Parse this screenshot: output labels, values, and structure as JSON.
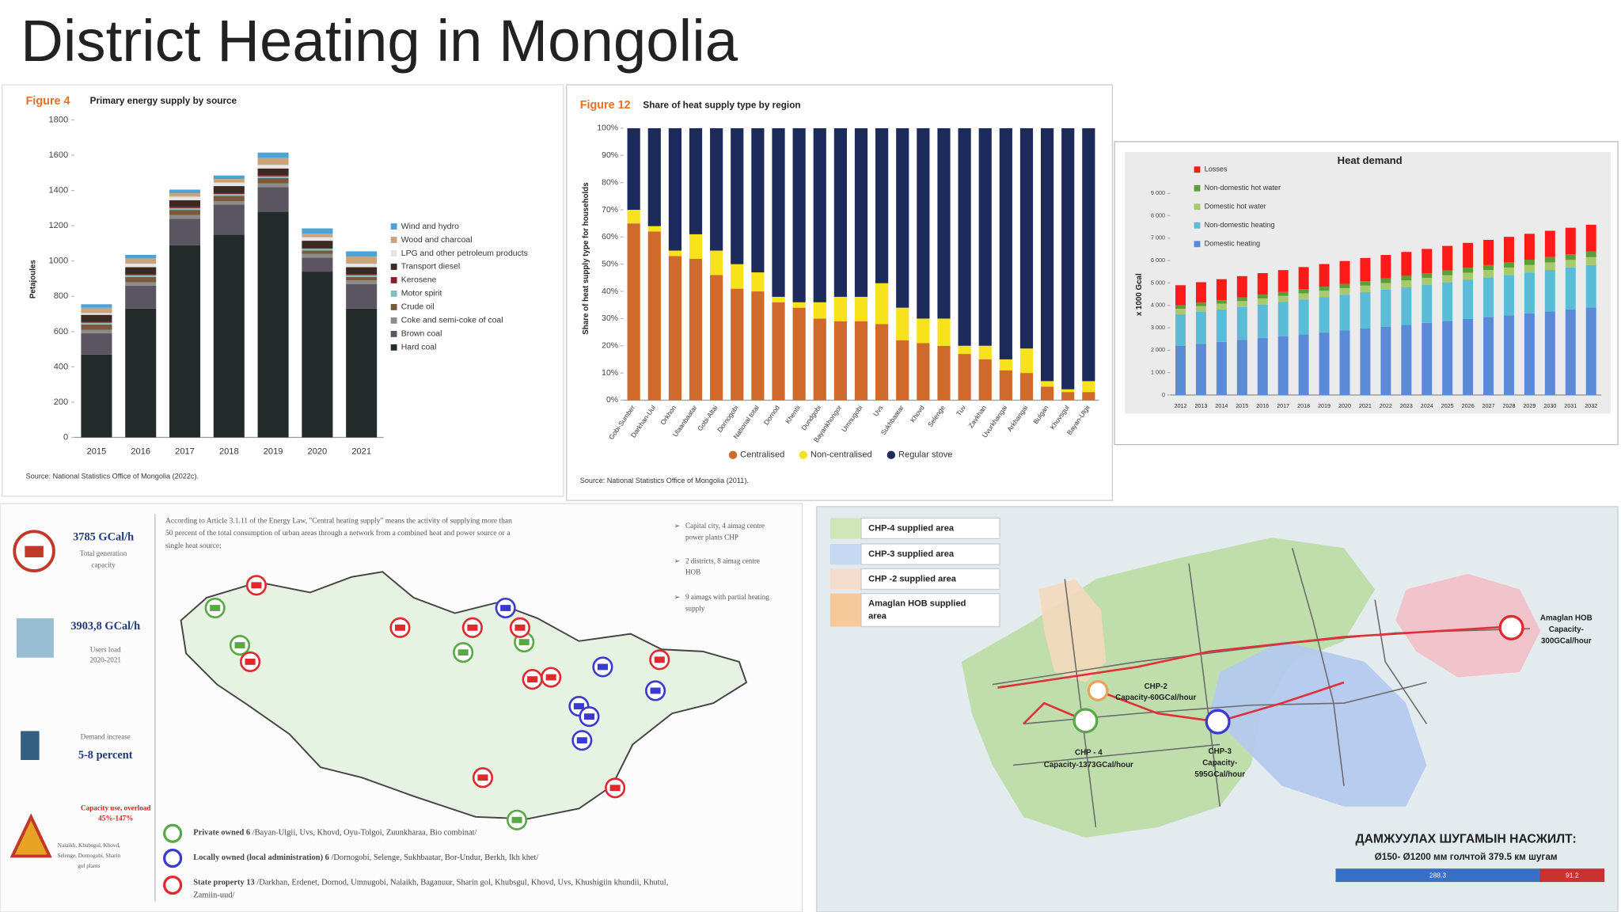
{
  "title": "District Heating in Mongolia",
  "chart_data": [
    {
      "type": "stacked_bar",
      "figure": "Figure 4",
      "title": "Primary energy supply by source",
      "y_label": "Petajoules",
      "source": "Source: National Statistics Office of Mongolia (2022c).",
      "categories": [
        "2015",
        "2016",
        "2017",
        "2018",
        "2019",
        "2020",
        "2021"
      ],
      "ylim": [
        0,
        1800
      ],
      "yticks": [
        0,
        200,
        400,
        600,
        800,
        1000,
        1200,
        1400,
        1600,
        1800
      ],
      "series": [
        {
          "name": "Wind and hydro",
          "color": "#4ba3d6",
          "values": [
            20,
            20,
            20,
            20,
            30,
            30,
            30
          ]
        },
        {
          "name": "Wood and charcoal",
          "color": "#c9a47a",
          "values": [
            30,
            30,
            20,
            20,
            40,
            20,
            40
          ]
        },
        {
          "name": "LPG and other petroleum products",
          "color": "#e6e6e6",
          "values": [
            10,
            20,
            20,
            20,
            20,
            20,
            20
          ]
        },
        {
          "name": "Transport diesel",
          "color": "#3b2a22",
          "values": [
            40,
            40,
            40,
            40,
            40,
            40,
            40
          ]
        },
        {
          "name": "Kerosene",
          "color": "#8b1c2a",
          "values": [
            5,
            5,
            5,
            5,
            5,
            5,
            5
          ]
        },
        {
          "name": "Motor spirit",
          "color": "#7fbfc0",
          "values": [
            10,
            10,
            10,
            10,
            10,
            10,
            10
          ]
        },
        {
          "name": "Crude oil",
          "color": "#7a5a3a",
          "values": [
            30,
            30,
            30,
            30,
            30,
            20,
            20
          ]
        },
        {
          "name": "Coke and semi-coke of coal",
          "color": "#8c8c8c",
          "values": [
            20,
            20,
            20,
            20,
            20,
            20,
            20
          ]
        },
        {
          "name": "Brown coal",
          "color": "#5a5560",
          "values": [
            120,
            130,
            150,
            170,
            140,
            80,
            140
          ]
        },
        {
          "name": "Hard coal",
          "color": "#222a2a",
          "values": [
            470,
            730,
            1090,
            1150,
            1280,
            940,
            730
          ]
        }
      ]
    },
    {
      "type": "stacked_bar",
      "figure": "Figure 12",
      "title": "Share of heat supply type by region",
      "y_label": "Share of heat supply type for households",
      "source": "Source: National Statistics Office of Mongolia (2011).",
      "categories": [
        "Gobi-Sumber",
        "Darkhan-Uul",
        "Orkhon",
        "Ulaanbaatar",
        "Gobi-Altai",
        "Dornogobi",
        "National total",
        "Dornod",
        "Khentii",
        "Dundgobi",
        "Bayankhongor",
        "Umnugobi",
        "Uvs",
        "Sukhbaatar",
        "Khovd",
        "Selenge",
        "Tuv",
        "Zavkhan",
        "Uvurkhangai",
        "Arkhangai",
        "Bulgan",
        "Khuvsgul",
        "Bayan-Ulgii"
      ],
      "ylim": [
        0,
        100
      ],
      "yticks": [
        {
          "value": 0,
          "label": "0%"
        },
        {
          "value": 10,
          "label": "10%"
        },
        {
          "value": 20,
          "label": "20%"
        },
        {
          "value": 30,
          "label": "30%"
        },
        {
          "value": 40,
          "label": "40%"
        },
        {
          "value": 50,
          "label": "50%"
        },
        {
          "value": 60,
          "label": "60%"
        },
        {
          "value": 70,
          "label": "70%"
        },
        {
          "value": 80,
          "label": "80%"
        },
        {
          "value": 90,
          "label": "90%"
        },
        {
          "value": 100,
          "label": "100%"
        }
      ],
      "series": [
        {
          "name": "Centralised",
          "color": "#cf6a2c",
          "values": [
            65,
            62,
            53,
            52,
            46,
            41,
            40,
            36,
            34,
            30,
            29,
            29,
            28,
            22,
            21,
            20,
            17,
            15,
            11,
            10,
            5,
            3,
            3
          ]
        },
        {
          "name": "Non-centralised",
          "color": "#f7e21c",
          "values": [
            5,
            2,
            2,
            9,
            9,
            9,
            7,
            2,
            2,
            6,
            9,
            9,
            15,
            12,
            9,
            10,
            3,
            5,
            4,
            9,
            2,
            1,
            4
          ]
        },
        {
          "name": "Regular stove",
          "color": "#1d2a5c",
          "values": [
            30,
            36,
            45,
            39,
            45,
            50,
            53,
            62,
            64,
            64,
            62,
            62,
            57,
            66,
            70,
            70,
            80,
            80,
            85,
            81,
            93,
            96,
            93
          ]
        }
      ]
    },
    {
      "type": "stacked_bar",
      "title": "Heat demand",
      "y_label": "x 1000 Gcal",
      "categories": [
        "2012",
        "2013",
        "2014",
        "2015",
        "2016",
        "2017",
        "2018",
        "2019",
        "2020",
        "2021",
        "2022",
        "2023",
        "2024",
        "2025",
        "2026",
        "2027",
        "2028",
        "2029",
        "2030",
        "2031",
        "2032"
      ],
      "ylim": [
        0,
        9000
      ],
      "yticks": [
        0,
        {
          "value": 1000,
          "label": "1 000"
        },
        {
          "value": 2000,
          "label": "2 000"
        },
        {
          "value": 3000,
          "label": "3 000"
        },
        {
          "value": 4000,
          "label": "4 000"
        },
        {
          "value": 5000,
          "label": "5 000"
        },
        {
          "value": 6000,
          "label": "6 000"
        },
        {
          "value": 7000,
          "label": "7 000"
        },
        {
          "value": 8000,
          "label": "8 000"
        },
        {
          "value": 9000,
          "label": "9 000"
        }
      ],
      "series": [
        {
          "name": "Losses",
          "color": "#ff1a1a",
          "values": [
            900,
            915,
            930,
            945,
            960,
            975,
            990,
            1005,
            1020,
            1035,
            1050,
            1065,
            1080,
            1095,
            1110,
            1125,
            1140,
            1155,
            1170,
            1185,
            1200
          ]
        },
        {
          "name": "Non-domestic hot water",
          "color": "#5a9e3a",
          "values": [
            150,
            155,
            160,
            165,
            170,
            175,
            180,
            185,
            190,
            195,
            200,
            205,
            210,
            215,
            220,
            225,
            230,
            235,
            240,
            245,
            250
          ]
        },
        {
          "name": "Domestic hot water",
          "color": "#a8c96c",
          "values": [
            250,
            255,
            260,
            265,
            270,
            275,
            280,
            285,
            290,
            295,
            300,
            305,
            310,
            315,
            320,
            325,
            330,
            335,
            340,
            345,
            350
          ]
        },
        {
          "name": "Non-domestic heating",
          "color": "#5bbcd8",
          "values": [
            1400,
            1425,
            1450,
            1475,
            1500,
            1525,
            1550,
            1575,
            1600,
            1625,
            1650,
            1675,
            1700,
            1725,
            1750,
            1775,
            1800,
            1825,
            1850,
            1875,
            1900
          ]
        },
        {
          "name": "Domestic heating",
          "color": "#5b8bd6",
          "values": [
            2200,
            2285,
            2370,
            2455,
            2540,
            2625,
            2710,
            2795,
            2880,
            2965,
            3050,
            3135,
            3220,
            3305,
            3390,
            3475,
            3560,
            3645,
            3730,
            3815,
            3900
          ]
        }
      ]
    }
  ],
  "infographic": {
    "capacity": {
      "value": "3785 GCal/h",
      "lines": [
        "Total generation",
        "capacity"
      ]
    },
    "load": {
      "value": "3903,8 GCal/h",
      "lines": [
        "Users load",
        "2020-2021"
      ]
    },
    "demand": {
      "label": "Demand increase",
      "value": "5-8 percent"
    },
    "overload": {
      "lines": [
        "Capacity use, overload",
        "45%-147%"
      ],
      "plants": [
        "Nalaikh, Khubsgul, Khovd,",
        "Selenge, Dornogobi, Sharin",
        "gol plants"
      ]
    },
    "definition": [
      "According to Article 3.1.11 of the Energy Law, \"Central heating supply\" means the activity of supplying more than",
      "50 percent of the total consumption of urban areas through a network from a combined heat and power source or a",
      "single heat source;"
    ],
    "bullets": [
      [
        "Capital city, 4 aimag centre",
        "power plants CHP"
      ],
      [
        "2 districts, 8 aimag centre",
        "HOB"
      ],
      [
        "9 aimags with partial heating",
        "supply"
      ]
    ],
    "ownership": [
      {
        "label": "Private owned 6",
        "list": "/Bayan-Ulgii, Uvs, Khovd, Oyu-Tolgoi, Zuunkharaa, Bio combinat/"
      },
      {
        "label": "Locally owned (local administration) 6",
        "list": "/Dornogobi, Selenge, Sukhbaatar, Bor-Undur, Berkh, Ikh khet/"
      },
      {
        "label": "State property 13",
        "list_lines": [
          "/Darkhan, Erdenet, Dornod, Umnugobi, Nalaikh, Baganuur, Sharin gol, Khubsgul, Khovd, Uvs, Khushigiin khundii, Khutul,",
          "Zamiin-uud/"
        ]
      }
    ]
  },
  "city_map": {
    "legend": [
      [
        "CHP-4 supplied area"
      ],
      [
        "CHP-3 supplied area"
      ],
      [
        "CHP -2 supplied area"
      ],
      [
        "Amaglan HOB supplied",
        "area"
      ]
    ],
    "plants": [
      [
        "CHP-2",
        "Capacity-60GCal/hour"
      ],
      [
        "CHP - 4",
        "Capacity-1373GCal/hour"
      ],
      [
        "CHP-3",
        "Capacity-",
        "595GCal/hour"
      ],
      [
        "Amaglan HOB",
        "Capacity-",
        "300GCal/hour"
      ]
    ],
    "pipeline": {
      "title": "ДАМЖУУЛАХ ШУГАМЫН НАСЖИЛТ:",
      "subtitle": "Ø150- Ø1200 мм голчтой 379.5 км шугам",
      "values": [
        288.3,
        91.2
      ],
      "colors": [
        "#3a6fc6",
        "#c8322f"
      ]
    }
  }
}
